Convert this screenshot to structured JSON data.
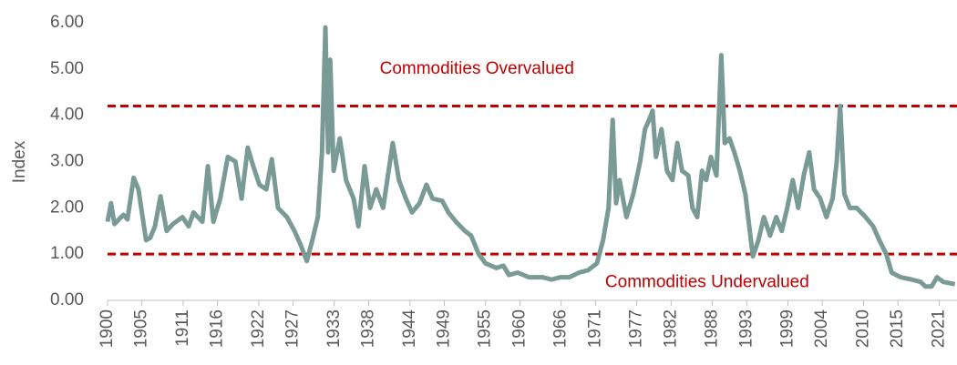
{
  "chart_data": {
    "type": "line",
    "ylabel": "Index",
    "annotations": [
      {
        "text": "Commodities Overvalued",
        "x": 1939.6,
        "y": 5.0
      },
      {
        "text": "Commodities Undervalued",
        "x": 1972.4,
        "y": 0.38
      }
    ],
    "reference_lines": [
      {
        "value": 4.2,
        "color": "#c00000"
      },
      {
        "value": 1.0,
        "color": "#c00000"
      }
    ],
    "xlim": [
      1900,
      2023.6
    ],
    "xticks": [
      1900,
      1905,
      1911,
      1916,
      1922,
      1927,
      1933,
      1938,
      1944,
      1949,
      1955,
      1960,
      1966,
      1971,
      1977,
      1982,
      1988,
      1993,
      1999,
      2004,
      2010,
      2015,
      2021
    ],
    "ylim": [
      0,
      6
    ],
    "yticks": [
      {
        "value": 0,
        "label": "0.00"
      },
      {
        "value": 1,
        "label": "1.00"
      },
      {
        "value": 2,
        "label": "2.00"
      },
      {
        "value": 3,
        "label": "3.00"
      },
      {
        "value": 4,
        "label": "4.00"
      },
      {
        "value": 5,
        "label": "5.00"
      },
      {
        "value": 6,
        "label": "6.00"
      }
    ],
    "series": [
      {
        "name": "Index",
        "color": "#7a9a96",
        "x": [
          1900,
          1900.5,
          1901,
          1902.3,
          1902.9,
          1903.8,
          1904.5,
          1905.6,
          1906.2,
          1906.9,
          1907.7,
          1908.6,
          1909.5,
          1910.9,
          1911.8,
          1912.5,
          1913.8,
          1914.6,
          1915.4,
          1916.4,
          1917.5,
          1918.6,
          1919.5,
          1920.4,
          1921.2,
          1922.1,
          1923.1,
          1923.9,
          1924.8,
          1926.1,
          1927.2,
          1928.1,
          1929.0,
          1929.8,
          1930.6,
          1931.2,
          1931.7,
          1932.1,
          1932.4,
          1932.9,
          1933.8,
          1934.7,
          1935.8,
          1936.5,
          1937.4,
          1938.2,
          1939.1,
          1940.1,
          1940.7,
          1941.5,
          1942.4,
          1943.4,
          1944.3,
          1945.4,
          1946.4,
          1947.3,
          1948.7,
          1949.6,
          1950.7,
          1952.0,
          1952.9,
          1954.0,
          1955.0,
          1956.6,
          1957.6,
          1958.4,
          1959.7,
          1961.3,
          1963.3,
          1964.6,
          1965.9,
          1967.2,
          1968.6,
          1969.9,
          1971.2,
          1972.1,
          1972.9,
          1973.5,
          1974.0,
          1974.5,
          1975.5,
          1976.5,
          1977.5,
          1978.2,
          1978.8,
          1979.3,
          1979.8,
          1980.6,
          1981.4,
          1982.2,
          1982.9,
          1983.6,
          1984.5,
          1985.1,
          1985.8,
          1986.5,
          1987.1,
          1987.8,
          1988.6,
          1989.3,
          1989.8,
          1990.5,
          1991.2,
          1992.0,
          1992.8,
          1993.9,
          1994.7,
          1995.5,
          1996.4,
          1997.3,
          1998.1,
          1998.9,
          1999.7,
          2000.5,
          2001.3,
          2002.1,
          2002.8,
          2003.7,
          2004.6,
          2005.5,
          2006.1,
          2006.6,
          2007.2,
          2008.0,
          2009.0,
          2010.3,
          2011.4,
          2012.3,
          2013.3,
          2014.1,
          2015.4,
          2017.0,
          2018.3,
          2019.0,
          2019.9,
          2020.7,
          2021.6,
          2023.3
        ],
        "values": [
          1.7,
          2.1,
          1.65,
          1.85,
          1.75,
          2.65,
          2.4,
          1.3,
          1.35,
          1.6,
          2.25,
          1.5,
          1.65,
          1.8,
          1.6,
          1.9,
          1.7,
          2.9,
          1.7,
          2.2,
          3.1,
          3.0,
          2.2,
          3.3,
          2.9,
          2.5,
          2.4,
          3.05,
          2.0,
          1.8,
          1.5,
          1.2,
          0.85,
          1.3,
          1.8,
          3.2,
          5.9,
          3.2,
          5.2,
          2.8,
          3.5,
          2.6,
          2.2,
          1.6,
          2.9,
          2.0,
          2.4,
          2.0,
          2.6,
          3.4,
          2.6,
          2.2,
          1.9,
          2.1,
          2.5,
          2.2,
          2.15,
          1.9,
          1.7,
          1.5,
          1.4,
          1.0,
          0.8,
          0.7,
          0.75,
          0.55,
          0.6,
          0.5,
          0.5,
          0.45,
          0.5,
          0.5,
          0.6,
          0.65,
          0.8,
          1.3,
          2.0,
          3.9,
          2.1,
          2.6,
          1.8,
          2.3,
          3.0,
          3.7,
          3.9,
          4.1,
          3.1,
          3.7,
          2.8,
          2.6,
          3.4,
          2.8,
          2.7,
          2.0,
          1.8,
          2.8,
          2.6,
          3.1,
          2.7,
          5.3,
          3.4,
          3.5,
          3.2,
          2.8,
          2.3,
          0.95,
          1.3,
          1.8,
          1.4,
          1.8,
          1.5,
          2.0,
          2.6,
          2.0,
          2.7,
          3.2,
          2.4,
          2.2,
          1.8,
          2.2,
          3.0,
          4.2,
          2.3,
          2.0,
          2.0,
          1.8,
          1.6,
          1.3,
          1.0,
          0.6,
          0.5,
          0.45,
          0.4,
          0.3,
          0.3,
          0.5,
          0.4,
          0.35
        ]
      }
    ]
  }
}
